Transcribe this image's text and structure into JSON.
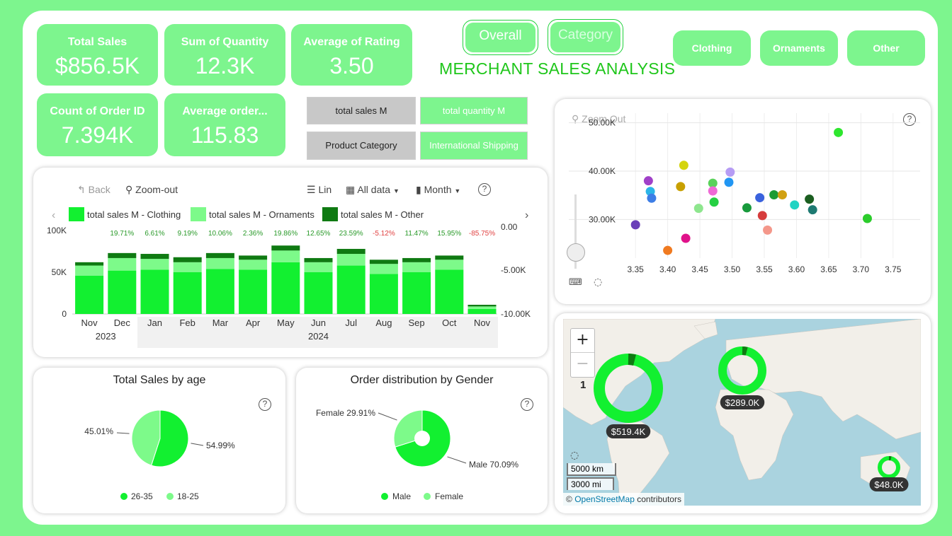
{
  "kpis": {
    "total_sales": {
      "label": "Total Sales",
      "value": "$856.5K"
    },
    "sum_quantity": {
      "label": "Sum of Quantity",
      "value": "12.3K"
    },
    "avg_rating": {
      "label": "Average of Rating",
      "value": "3.50"
    },
    "count_order": {
      "label": "Count of Order ID",
      "value": "7.394K"
    },
    "avg_order": {
      "label": "Average order...",
      "value": "115.83"
    }
  },
  "nav": {
    "overall": "Overall",
    "category": "Category"
  },
  "dashboard_title": "MERCHANT SALES ANALYSIS",
  "slicers": {
    "clothing": "Clothing",
    "ornaments": "Ornaments",
    "other": "Other"
  },
  "toggles": {
    "total_sales_m": "total sales M",
    "total_quantity_m": "total quantity M",
    "product_category": "Product Category",
    "international_shipping": "International Shipping"
  },
  "bar_toolbar": {
    "back": "Back",
    "zoom_out": "Zoom-out",
    "lin": "Lin",
    "all_data": "All data",
    "month": "Month"
  },
  "scatter_toolbar": {
    "zoom_out": "Zoom Out"
  },
  "colors": {
    "clothing": "#12f030",
    "ornaments": "#7dfa8a",
    "other": "#0f7a12",
    "accent": "#7df58e"
  },
  "chart_data": [
    {
      "type": "bar",
      "stacked": true,
      "categories": [
        "Nov",
        "Dec",
        "Jan",
        "Feb",
        "Mar",
        "Apr",
        "May",
        "Jun",
        "Jul",
        "Aug",
        "Sep",
        "Oct",
        "Nov"
      ],
      "year_labels": [
        {
          "label": "2023",
          "span": [
            0,
            1
          ]
        },
        {
          "label": "2024",
          "span": [
            2,
            12
          ]
        }
      ],
      "series": [
        {
          "name": "total sales M - Clothing",
          "values": [
            46,
            52,
            53,
            50,
            54,
            53,
            62,
            50,
            58,
            48,
            50,
            53,
            6
          ]
        },
        {
          "name": "total sales M - Ornaments",
          "values": [
            12,
            15,
            13,
            12,
            13,
            12,
            14,
            12,
            14,
            12,
            12,
            12,
            3
          ]
        },
        {
          "name": "total sales M - Other",
          "values": [
            4,
            6,
            6,
            6,
            6,
            5,
            6,
            5,
            6,
            5,
            5,
            5,
            2
          ]
        }
      ],
      "growth_labels": [
        "",
        "19.71%",
        "6.61%",
        "9.19%",
        "10.06%",
        "2.36%",
        "19.86%",
        "12.65%",
        "23.59%",
        "-5.12%",
        "11.47%",
        "15.95%",
        "-85.75%"
      ],
      "y_ticks": [
        "100K",
        "50K",
        "0"
      ],
      "ylim": [
        0,
        100
      ],
      "y2_ticks": [
        "0.00",
        "-5.00K",
        "-10.00K"
      ]
    },
    {
      "type": "scatter",
      "x_ticks": [
        "3.35",
        "3.40",
        "3.45",
        "3.50",
        "3.55",
        "3.60",
        "3.65",
        "3.70",
        "3.75"
      ],
      "y_ticks": [
        "50.00K",
        "40.00K",
        "30.00K"
      ],
      "xlim": [
        3.33,
        3.77
      ],
      "ylim": [
        22,
        52
      ],
      "points": [
        {
          "x": 3.665,
          "y": 48,
          "color": "#2ee62e"
        },
        {
          "x": 3.425,
          "y": 41.2,
          "color": "#d4d40e"
        },
        {
          "x": 3.497,
          "y": 39.8,
          "color": "#b69cf4"
        },
        {
          "x": 3.37,
          "y": 38,
          "color": "#a040c8"
        },
        {
          "x": 3.47,
          "y": 37.5,
          "color": "#5ad25a"
        },
        {
          "x": 3.495,
          "y": 37.7,
          "color": "#2196f3"
        },
        {
          "x": 3.42,
          "y": 36.8,
          "color": "#c8a000"
        },
        {
          "x": 3.373,
          "y": 35.8,
          "color": "#2bb5e8"
        },
        {
          "x": 3.47,
          "y": 35.9,
          "color": "#ef6ad6"
        },
        {
          "x": 3.375,
          "y": 34.4,
          "color": "#3d7ee6"
        },
        {
          "x": 3.472,
          "y": 33.6,
          "color": "#25d043"
        },
        {
          "x": 3.543,
          "y": 34.5,
          "color": "#3a62dd"
        },
        {
          "x": 3.565,
          "y": 35.1,
          "color": "#1c9b33"
        },
        {
          "x": 3.578,
          "y": 35.1,
          "color": "#d1a112"
        },
        {
          "x": 3.62,
          "y": 34.2,
          "color": "#1b5e20"
        },
        {
          "x": 3.448,
          "y": 32.3,
          "color": "#8ee68e"
        },
        {
          "x": 3.523,
          "y": 32.4,
          "color": "#189a3c"
        },
        {
          "x": 3.597,
          "y": 33.0,
          "color": "#22d3c3"
        },
        {
          "x": 3.625,
          "y": 32.0,
          "color": "#1e7a72"
        },
        {
          "x": 3.547,
          "y": 30.8,
          "color": "#d63c3c"
        },
        {
          "x": 3.71,
          "y": 30.2,
          "color": "#2bcc2b"
        },
        {
          "x": 3.35,
          "y": 28.9,
          "color": "#6a3fb8"
        },
        {
          "x": 3.555,
          "y": 27.8,
          "color": "#f4978a"
        },
        {
          "x": 3.428,
          "y": 26.1,
          "color": "#e0128a"
        },
        {
          "x": 3.4,
          "y": 23.6,
          "color": "#f07a20"
        }
      ]
    },
    {
      "type": "pie",
      "title": "Total Sales by age",
      "slices": [
        {
          "label": "26-35",
          "value": 54.99,
          "display": "54.99%",
          "color": "#12f030"
        },
        {
          "label": "18-25",
          "value": 45.01,
          "display": "45.01%",
          "color": "#7dfa8a"
        }
      ]
    },
    {
      "type": "pie",
      "donut": true,
      "title": "Order distribution by Gender",
      "slices": [
        {
          "label": "Male",
          "value": 70.09,
          "display": "Male 70.09%",
          "color": "#12f030"
        },
        {
          "label": "Female",
          "value": 29.91,
          "display": "Female 29.91%",
          "color": "#7dfa8a"
        }
      ]
    }
  ],
  "map": {
    "bubbles": [
      {
        "label": "$519.4K"
      },
      {
        "label": "$289.0K"
      },
      {
        "label": "$48.0K"
      }
    ],
    "cluster_count": "1",
    "scale_km": "5000 km",
    "scale_mi": "3000 mi",
    "attribution_prefix": "©",
    "attribution_link": "OpenStreetMap",
    "attribution_suffix": "contributors",
    "zoom_in": "+",
    "zoom_out": "−"
  }
}
